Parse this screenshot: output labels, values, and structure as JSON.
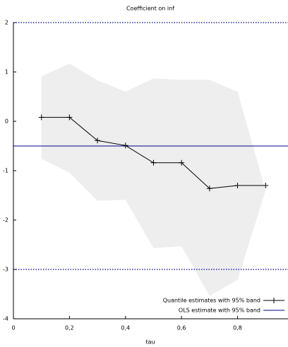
{
  "chart_data": {
    "type": "quantile",
    "title": "Coefficient on inf",
    "xlabel": "tau",
    "x": [
      0.1,
      0.2,
      0.3,
      0.4,
      0.5,
      0.6,
      0.7,
      0.8,
      0.9
    ],
    "series": [
      {
        "name": "Quantile estimates with 95% band",
        "color": "#000000",
        "values": [
          0.08,
          0.08,
          -0.39,
          -0.49,
          -0.84,
          -0.84,
          -1.36,
          -1.3,
          -1.3
        ],
        "lower": [
          -0.76,
          -1.04,
          -1.61,
          -1.59,
          -2.57,
          -2.53,
          -3.54,
          -3.21,
          -1.4
        ],
        "upper": [
          0.91,
          1.17,
          0.83,
          0.6,
          0.87,
          0.84,
          0.84,
          0.6,
          -1.4
        ],
        "band_color": "#eeeeee"
      }
    ],
    "ols": {
      "name": "OLS estimate with 95% band",
      "color": "#00008b",
      "value": -0.5,
      "lower": -3,
      "upper": 2
    },
    "xlim": [
      0,
      0.98
    ],
    "ylim": [
      -4,
      2
    ],
    "xticks": [
      0,
      {
        "value": 0.2,
        "label": "0,2"
      },
      {
        "value": 0.4,
        "label": "0,4"
      },
      {
        "value": 0.6,
        "label": "0,6"
      },
      {
        "value": 0.8,
        "label": "0,8"
      }
    ],
    "yticks": [
      -4,
      -3,
      -2,
      -1,
      0,
      1,
      2
    ],
    "legend": "lower-right"
  }
}
